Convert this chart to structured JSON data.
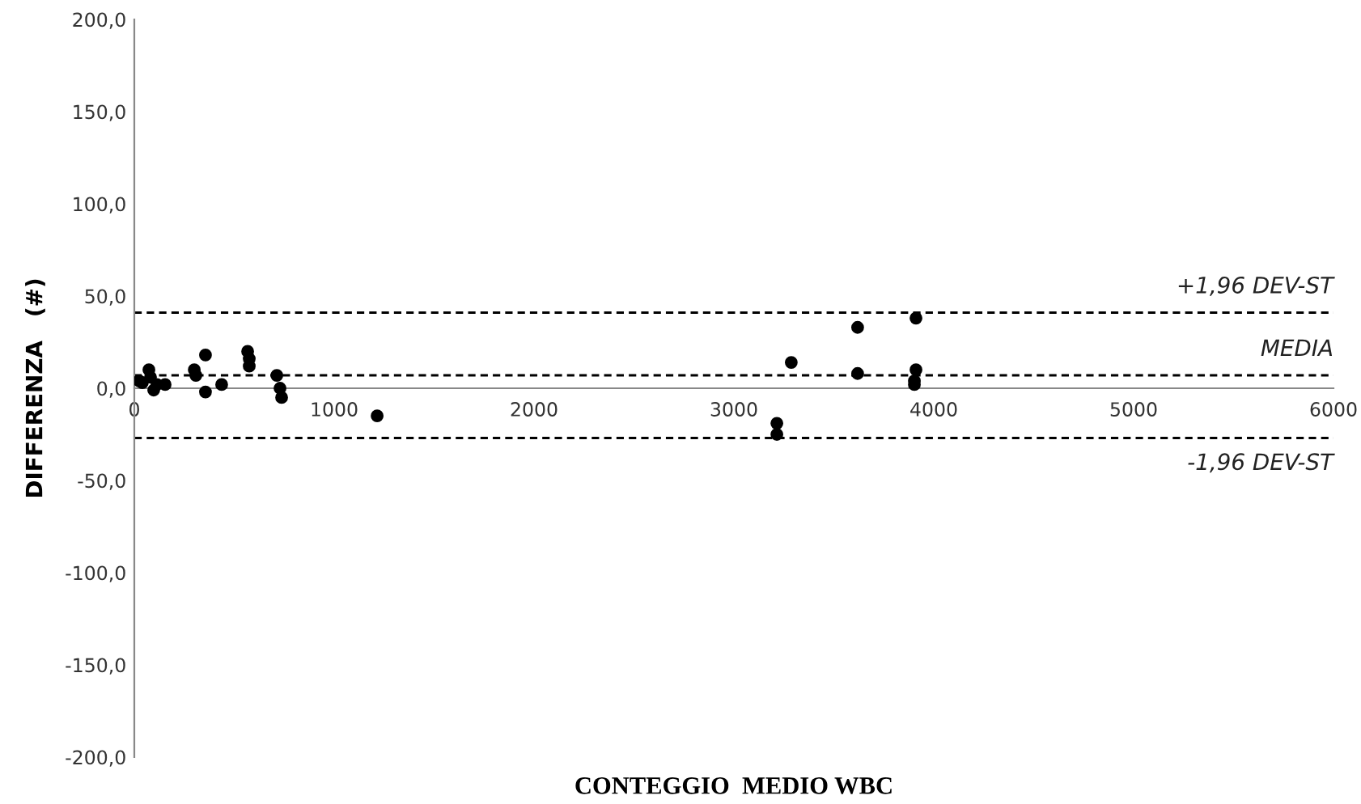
{
  "chart_data": {
    "type": "scatter",
    "xlabel": "CONTEGGIO  MEDIO WBC",
    "ylabel": "DIFFERENZA   (#)",
    "x": [
      24,
      40,
      73,
      81,
      97,
      113,
      154,
      300,
      308,
      356,
      356,
      437,
      567,
      575,
      575,
      713,
      729,
      737,
      1215,
      3215,
      3215,
      3287,
      3619,
      3619,
      3903,
      3903,
      3911,
      3911
    ],
    "series": [
      {
        "color": "#000000",
        "values": [
          4,
          3,
          10,
          6,
          -1,
          2,
          2,
          10,
          7,
          18,
          -2,
          2,
          20,
          16,
          12,
          7,
          0,
          -5,
          -15,
          -19,
          -25,
          14,
          33,
          8,
          4,
          2,
          10,
          38
        ]
      }
    ],
    "marker": "circle",
    "grid": false,
    "legend": false,
    "xlim": [
      0,
      6000
    ],
    "xticks": [
      0,
      1000,
      2000,
      3000,
      4000,
      5000,
      6000
    ],
    "ylim": [
      -200,
      200
    ],
    "yticks": [
      {
        "value": -200,
        "label": "-200,0"
      },
      {
        "value": -150,
        "label": "-150,0"
      },
      {
        "value": -100,
        "label": "-100,0"
      },
      {
        "value": -50,
        "label": "-50,0"
      },
      {
        "value": 0,
        "label": "0,0"
      },
      {
        "value": 50,
        "label": "50,0"
      },
      {
        "value": 100,
        "label": "100,0"
      },
      {
        "value": 150,
        "label": "150,0"
      },
      {
        "value": 200,
        "label": "200,0"
      }
    ],
    "ref_lines": [
      {
        "axis": "y",
        "value": 41,
        "label": "+1,96 DEV-ST",
        "color": "#000000",
        "line_style": "dashed"
      },
      {
        "axis": "y",
        "value": 7,
        "label": "MEDIA",
        "color": "#000000",
        "line_style": "dashed"
      },
      {
        "axis": "y",
        "value": -27,
        "label": "-1,96 DEV-ST",
        "color": "#000000",
        "line_style": "dashed"
      }
    ]
  }
}
